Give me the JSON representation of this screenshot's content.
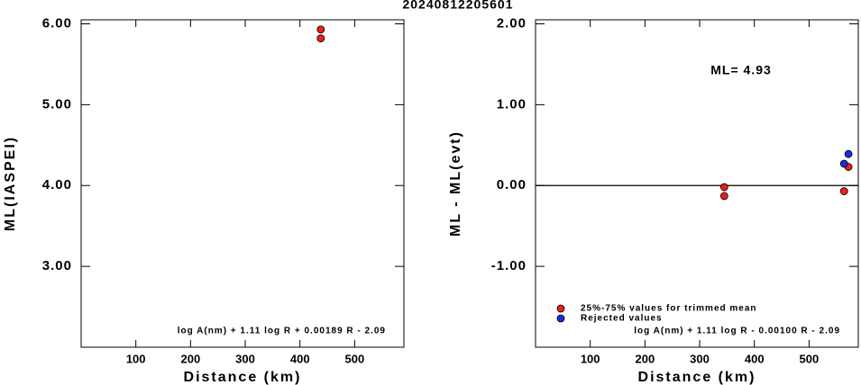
{
  "title": "20240812205601",
  "chart_data": [
    {
      "type": "scatter",
      "x_label": "Distance (km)",
      "y_label": "ML(IASPEI)",
      "xlim": [
        0,
        590
      ],
      "ylim": [
        2.0,
        6.05
      ],
      "xticks": [
        100,
        200,
        300,
        400,
        500
      ],
      "yticks": [
        {
          "value": 3,
          "label": "3.00"
        },
        {
          "value": 4,
          "label": "4.00"
        },
        {
          "value": 5,
          "label": "5.00"
        },
        {
          "value": 6,
          "label": "6.00"
        }
      ],
      "annotations": [
        "log A(nm) + 1.11 log R + 0.00189 R - 2.09"
      ],
      "series": [
        {
          "color": "#e8201a",
          "x": [
            438,
            438
          ],
          "values": [
            5.93,
            5.82
          ]
        }
      ]
    },
    {
      "type": "scatter",
      "x_label": "Distance (km)",
      "y_label": "ML - ML(evt)",
      "xlim": [
        0,
        590
      ],
      "ylim": [
        -2.0,
        2.05
      ],
      "xticks": [
        100,
        200,
        300,
        400,
        500
      ],
      "yticks": [
        {
          "value": -1,
          "label": "-1.00"
        },
        {
          "value": 0,
          "label": "0.00"
        },
        {
          "value": 1,
          "label": "1.00"
        },
        {
          "value": 2,
          "label": "2.00"
        }
      ],
      "hline": 0,
      "annotations": [
        "ML= 4.93",
        "log A(nm) + 1.11 log R - 0.00100 R - 2.09"
      ],
      "series": [
        {
          "name": "25%-75% values for trimmed mean",
          "color": "#e8201a",
          "x": [
            345,
            345,
            572,
            564
          ],
          "values": [
            -0.02,
            -0.13,
            0.23,
            -0.07
          ]
        },
        {
          "name": "Rejected values",
          "color": "#1a2fd8",
          "x": [
            572,
            564
          ],
          "values": [
            0.39,
            0.27
          ]
        }
      ]
    }
  ]
}
